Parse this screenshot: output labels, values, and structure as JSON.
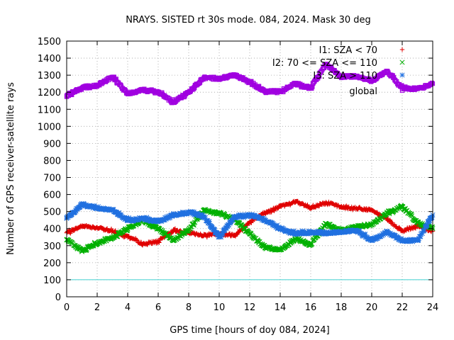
{
  "chart_data": {
    "type": "scatter",
    "title": "NRAYS. SISTED rt 30s mode. 084, 2024. Mask 30 deg",
    "xlabel": "GPS time [hours of doy 084, 2024]",
    "ylabel": "Number of GPS receiver-satellite rays",
    "xlim": [
      0,
      24
    ],
    "ylim": [
      0,
      1500
    ],
    "xticks": [
      "0",
      "2",
      "4",
      "6",
      "8",
      "10",
      "12",
      "14",
      "16",
      "18",
      "20",
      "22",
      "24"
    ],
    "yticks": [
      "0",
      "100",
      "200",
      "300",
      "400",
      "500",
      "600",
      "700",
      "800",
      "900",
      "1000",
      "1100",
      "1200",
      "1300",
      "1400",
      "1500"
    ],
    "grid": true,
    "legend_position": "top-right",
    "threshold_line": {
      "y": 100,
      "color": "#40d0d0"
    },
    "series": [
      {
        "name": "I1: SZA < 70",
        "marker": "+",
        "color": "#e00000",
        "x": [
          0,
          1,
          2,
          3,
          4,
          5,
          6,
          7,
          8,
          9,
          10,
          11,
          12,
          13,
          14,
          15,
          16,
          17,
          18,
          19,
          20,
          21,
          22,
          23,
          24
        ],
        "y": [
          375,
          415,
          405,
          385,
          355,
          310,
          325,
          390,
          375,
          360,
          370,
          360,
          440,
          490,
          530,
          560,
          520,
          555,
          525,
          520,
          510,
          455,
          385,
          415,
          385
        ]
      },
      {
        "name": "I2: 70 <= SZA <= 110",
        "marker": "x",
        "color": "#00b000",
        "x": [
          0,
          1,
          2,
          3,
          4,
          5,
          6,
          7,
          8,
          9,
          10,
          11,
          12,
          13,
          14,
          15,
          16,
          17,
          18,
          19,
          20,
          21,
          22,
          23,
          24
        ],
        "y": [
          335,
          270,
          315,
          345,
          400,
          450,
          400,
          330,
          395,
          505,
          490,
          455,
          370,
          290,
          275,
          340,
          305,
          430,
          390,
          410,
          425,
          490,
          530,
          435,
          400
        ]
      },
      {
        "name": "I3: SZA > 110",
        "marker": "*",
        "color": "#2070e0",
        "x": [
          0,
          1,
          2,
          3,
          4,
          5,
          6,
          7,
          8,
          9,
          10,
          11,
          12,
          13,
          14,
          15,
          16,
          17,
          18,
          19,
          20,
          21,
          22,
          23,
          24
        ],
        "y": [
          460,
          540,
          520,
          510,
          450,
          460,
          440,
          480,
          495,
          470,
          350,
          470,
          480,
          450,
          400,
          370,
          380,
          375,
          380,
          390,
          330,
          380,
          330,
          330,
          480
        ]
      },
      {
        "name": "global",
        "marker": "square",
        "color": "#a000e0",
        "x": [
          0,
          1,
          2,
          3,
          4,
          5,
          6,
          7,
          8,
          9,
          10,
          11,
          12,
          13,
          14,
          15,
          16,
          17,
          18,
          19,
          20,
          21,
          22,
          23,
          24
        ],
        "y": [
          1180,
          1225,
          1240,
          1290,
          1190,
          1215,
          1200,
          1140,
          1200,
          1285,
          1280,
          1300,
          1260,
          1205,
          1205,
          1250,
          1225,
          1365,
          1290,
          1295,
          1265,
          1325,
          1225,
          1220,
          1250
        ]
      }
    ]
  }
}
